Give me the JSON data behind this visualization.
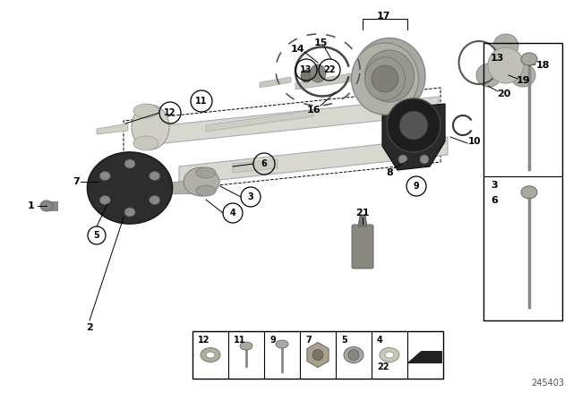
{
  "bg_color": "#ffffff",
  "diagram_id": "245403",
  "shaft_color": "#d8d8d0",
  "shaft_edge": "#aaaaaa",
  "dark_part": "#3a3a3a",
  "bearing_color": "#4a4a4a",
  "cv_color": "#b8b8b0",
  "light_gray": "#c8c8c0"
}
